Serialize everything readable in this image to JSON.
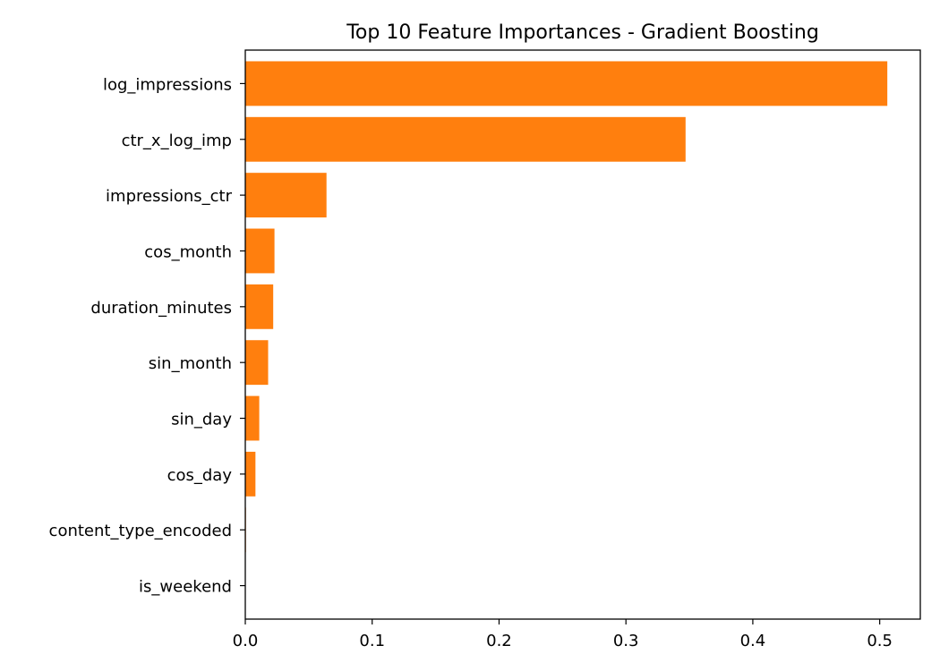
{
  "chart_data": {
    "type": "bar",
    "orientation": "horizontal",
    "title": "Top 10 Feature Importances - Gradient Boosting",
    "xlabel": "",
    "ylabel": "",
    "categories": [
      "log_impressions",
      "ctr_x_log_imp",
      "impressions_ctr",
      "cos_month",
      "duration_minutes",
      "sin_month",
      "sin_day",
      "cos_day",
      "content_type_encoded",
      "is_weekend"
    ],
    "values": [
      0.506,
      0.347,
      0.064,
      0.023,
      0.022,
      0.018,
      0.011,
      0.008,
      0.0005,
      0.0002
    ],
    "xlim": [
      0,
      0.532
    ],
    "xticks": [
      0.0,
      0.1,
      0.2,
      0.3,
      0.4,
      0.5
    ],
    "xtick_labels": [
      "0.0",
      "0.1",
      "0.2",
      "0.3",
      "0.4",
      "0.5"
    ],
    "bar_color": "#ff7f0e",
    "grid": false
  }
}
